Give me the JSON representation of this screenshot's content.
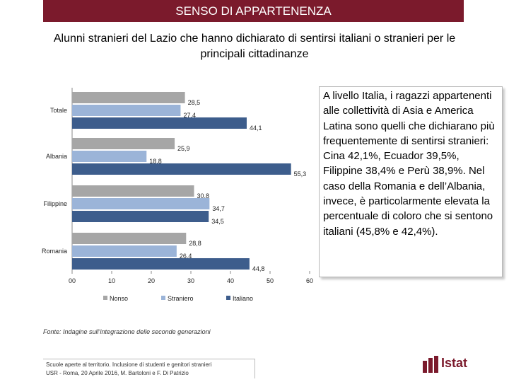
{
  "header": {
    "title": "SENSO DI APPARTENENZA"
  },
  "chart_data": {
    "type": "bar",
    "orientation": "horizontal",
    "title": "Alunni stranieri del Lazio che hanno dichiarato di sentirsi italiani o stranieri per le principali cittadinanze",
    "categories": [
      "Totale",
      "Albania",
      "Filippine",
      "Romania"
    ],
    "value_labels": {
      "Nonso": [
        "28,5",
        "25,9",
        "30,8",
        "28,8"
      ],
      "Straniero": [
        "27,4",
        "18,8",
        "34,7",
        "26,4"
      ],
      "Italiano": [
        "44,1",
        "55,3",
        "34,5",
        "44,8"
      ]
    },
    "series": [
      {
        "name": "Nonso",
        "color": "#a6a6a6",
        "values": [
          28.5,
          25.9,
          30.8,
          28.8
        ]
      },
      {
        "name": "Straniero",
        "color": "#9bb4d8",
        "values": [
          27.4,
          18.8,
          34.7,
          26.4
        ]
      },
      {
        "name": "Italiano",
        "color": "#3d5d8c",
        "values": [
          44.1,
          55.3,
          34.5,
          44.8
        ]
      }
    ],
    "xlim": [
      0,
      60
    ],
    "xticks": [
      0,
      10,
      20,
      30,
      40,
      50,
      60
    ],
    "xtick_labels": [
      "00",
      "10",
      "20",
      "30",
      "40",
      "50",
      "60"
    ],
    "legend": "bottom"
  },
  "side_text": "A livello Italia, i ragazzi appartenenti alle collettività di Asia e America Latina sono quelli che dichiarano più frequentemente di sentirsi stranieri: Cina 42,1%, Ecuador 39,5%, Filippine 38,4% e Perù 38,9%. Nel caso della Romania e dell’Albania, invece, è particolarmente elevata la percentuale di coloro che si sentono italiani (45,8% e 42,4%).",
  "source": "Fonte: Indagine sull’integrazione delle seconde generazioni",
  "footnote": {
    "line1": "Scuole aperte al territorio. Inclusione di studenti e genitori stranieri",
    "line2": "USR - Roma, 20 Aprile 2016, M. Bartoloni e F. Di Patrizio"
  },
  "logo": {
    "text": "Istat"
  }
}
